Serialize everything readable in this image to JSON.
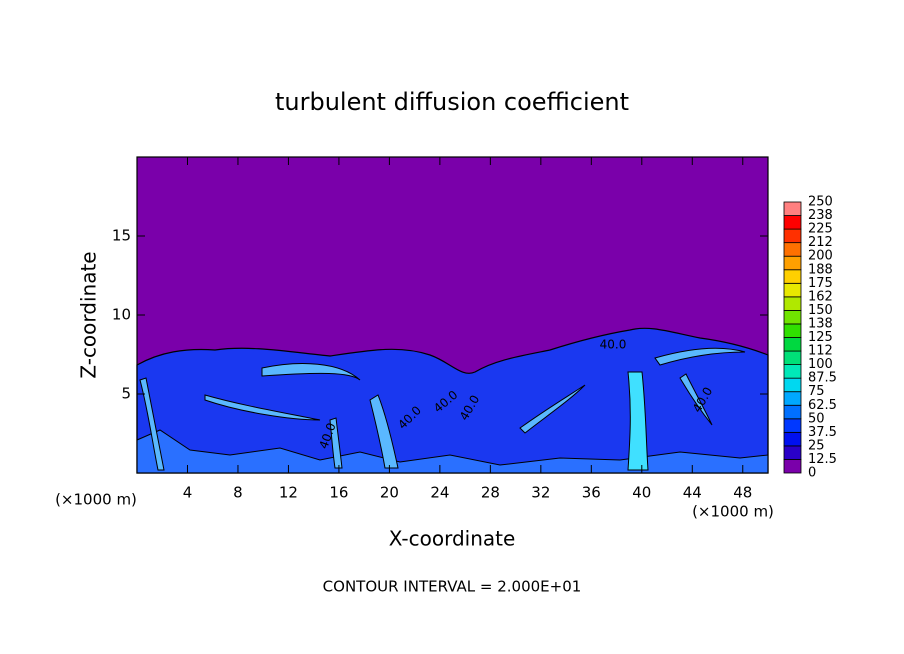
{
  "chart_data": {
    "type": "contour",
    "title": "turbulent diffusion coefficient",
    "xlabel": "X-coordinate",
    "ylabel": "Z-coordinate",
    "x_unit": "(×1000 m)",
    "x_unit_right": "(×1000 m)",
    "footnote": "CONTOUR INTERVAL = 2.000E+01",
    "xlim": [
      0,
      50
    ],
    "xticks": [
      4,
      8,
      12,
      16,
      20,
      24,
      28,
      32,
      36,
      40,
      44,
      48
    ],
    "ylim": [
      0,
      20
    ],
    "yticks": [
      5,
      10,
      15
    ],
    "colorbar_ticks": [
      0,
      12.5,
      25,
      37.5,
      50,
      62.5,
      75,
      87.5,
      100,
      {
        "value": 112.5,
        "label": "112"
      },
      125,
      {
        "value": 137.5,
        "label": "138"
      },
      150,
      {
        "value": 162.5,
        "label": "162"
      },
      175,
      {
        "value": 187.5,
        "label": "188"
      },
      200,
      {
        "value": 212.5,
        "label": "212"
      },
      225,
      {
        "value": 237.5,
        "label": "238"
      },
      250
    ],
    "colorbar_colors": [
      "#7a00aa",
      "#2a00c8",
      "#0010f0",
      "#0038ff",
      "#0070ff",
      "#00a8ff",
      "#00d8f0",
      "#00e8b8",
      "#00e078",
      "#00d840",
      "#30e000",
      "#70e400",
      "#b0e800",
      "#e8e800",
      "#ffd000",
      "#ffa000",
      "#ff7000",
      "#ff3000",
      "#ff0000",
      "#ff8080"
    ],
    "contour_labels": [
      "40.0",
      "40.0",
      "40.0",
      "40.0",
      "40.0",
      "40.0"
    ]
  }
}
